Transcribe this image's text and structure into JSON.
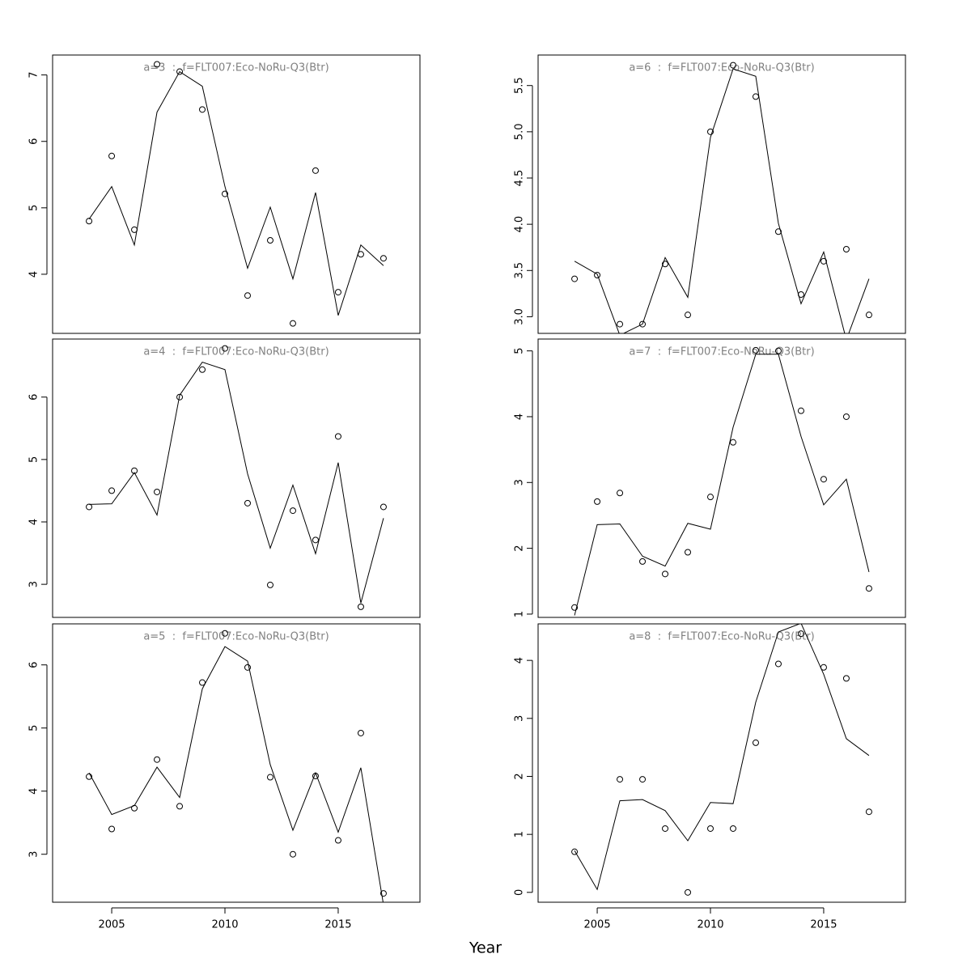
{
  "xlabel": "Year",
  "chart_data": [
    {
      "type": "line",
      "title": "a=3  :  f=FLT007:Eco-NoRu-Q3(Btr)",
      "x": [
        2004,
        2005,
        2006,
        2007,
        2008,
        2009,
        2010,
        2011,
        2012,
        2013,
        2014,
        2015,
        2016,
        2017
      ],
      "series": [
        {
          "marker": "circle",
          "color": "#000000",
          "values": [
            4.8,
            5.78,
            4.67,
            7.16,
            7.05,
            6.48,
            5.21,
            3.68,
            4.51,
            3.26,
            5.56,
            3.73,
            4.3,
            4.24
          ]
        },
        {
          "marker": "none",
          "color": "#000000",
          "values": [
            4.83,
            5.32,
            4.44,
            6.44,
            7.05,
            6.83,
            5.32,
            4.09,
            5.01,
            3.93,
            5.23,
            3.38,
            4.44,
            4.13
          ]
        }
      ],
      "xlim": [
        2002.39,
        2018.61
      ],
      "ylim": [
        3.11,
        7.3
      ],
      "yticks": [
        4,
        5,
        6,
        7
      ]
    },
    {
      "type": "line",
      "title": "a=6  :  f=FLT007:Eco-NoRu-Q3(Btr)",
      "x": [
        2004,
        2005,
        2006,
        2007,
        2008,
        2009,
        2010,
        2011,
        2012,
        2013,
        2014,
        2015,
        2016,
        2017
      ],
      "series": [
        {
          "marker": "circle",
          "color": "#000000",
          "values": [
            3.41,
            3.45,
            2.92,
            2.92,
            3.57,
            3.02,
            5.0,
            5.72,
            5.38,
            3.92,
            3.24,
            3.6,
            3.73,
            3.02
          ]
        },
        {
          "marker": "none",
          "color": "#000000",
          "values": [
            3.6,
            3.46,
            2.8,
            2.92,
            3.64,
            3.21,
            4.94,
            5.68,
            5.6,
            4.01,
            3.14,
            3.7,
            2.75,
            3.41
          ]
        }
      ],
      "xlim": [
        2002.39,
        2018.61
      ],
      "ylim": [
        2.82,
        5.83
      ],
      "yticks": [
        {
          "value": 3,
          "label": "3.0"
        },
        3.5,
        {
          "value": 4,
          "label": "4.0"
        },
        4.5,
        {
          "value": 5,
          "label": "5.0"
        },
        5.5
      ]
    },
    {
      "type": "line",
      "title": "a=4  :  f=FLT007:Eco-NoRu-Q3(Btr)",
      "x": [
        2004,
        2005,
        2006,
        2007,
        2008,
        2009,
        2010,
        2011,
        2012,
        2013,
        2014,
        2015,
        2016,
        2017
      ],
      "series": [
        {
          "marker": "circle",
          "color": "#000000",
          "values": [
            4.24,
            4.5,
            4.82,
            4.48,
            6.0,
            6.44,
            6.78,
            4.3,
            2.99,
            4.18,
            3.71,
            5.37,
            2.64,
            4.24
          ]
        },
        {
          "marker": "none",
          "color": "#000000",
          "values": [
            4.28,
            4.29,
            4.79,
            4.11,
            6.03,
            6.56,
            6.44,
            4.77,
            3.58,
            4.59,
            3.49,
            4.95,
            2.7,
            4.06
          ]
        }
      ],
      "xlim": [
        2002.39,
        2018.61
      ],
      "ylim": [
        2.47,
        6.93
      ],
      "yticks": [
        3,
        4,
        5,
        6
      ]
    },
    {
      "type": "line",
      "title": "a=7  :  f=FLT007:Eco-NoRu-Q3(Btr)",
      "x": [
        2004,
        2005,
        2006,
        2007,
        2008,
        2009,
        2010,
        2011,
        2012,
        2013,
        2014,
        2015,
        2016,
        2017
      ],
      "series": [
        {
          "marker": "circle",
          "color": "#000000",
          "values": [
            1.1,
            2.71,
            2.84,
            1.8,
            1.61,
            1.94,
            2.78,
            3.61,
            5.01,
            5.0,
            4.09,
            3.05,
            4.0,
            1.39
          ]
        },
        {
          "marker": "none",
          "color": "#000000",
          "values": [
            0.98,
            2.36,
            2.37,
            1.88,
            1.73,
            2.38,
            2.29,
            3.84,
            4.95,
            4.95,
            3.7,
            2.66,
            3.05,
            1.64
          ]
        }
      ],
      "xlim": [
        2002.39,
        2018.61
      ],
      "ylim": [
        0.95,
        5.18
      ],
      "yticks": [
        1,
        2,
        3,
        4,
        5
      ]
    },
    {
      "type": "line",
      "title": "a=5  :  f=FLT007:Eco-NoRu-Q3(Btr)",
      "x": [
        2004,
        2005,
        2006,
        2007,
        2008,
        2009,
        2010,
        2011,
        2012,
        2013,
        2014,
        2015,
        2016,
        2017
      ],
      "series": [
        {
          "marker": "circle",
          "color": "#000000",
          "values": [
            4.23,
            3.4,
            3.73,
            4.5,
            3.76,
            5.72,
            6.5,
            5.96,
            4.22,
            3.0,
            4.24,
            3.22,
            4.92,
            2.38
          ]
        },
        {
          "marker": "none",
          "color": "#000000",
          "values": [
            4.29,
            3.63,
            3.77,
            4.38,
            3.9,
            5.62,
            6.29,
            6.06,
            4.42,
            3.38,
            4.29,
            3.35,
            4.37,
            2.2
          ]
        }
      ],
      "xlim": [
        2002.39,
        2018.61
      ],
      "ylim": [
        2.24,
        6.65
      ],
      "yticks": [
        3,
        4,
        5,
        6
      ],
      "xticks": [
        2005,
        2010,
        2015
      ]
    },
    {
      "type": "line",
      "title": "a=8  :  f=FLT007:Eco-NoRu-Q3(Btr)",
      "x": [
        2004,
        2005,
        2006,
        2007,
        2008,
        2009,
        2010,
        2011,
        2012,
        2013,
        2014,
        2015,
        2016,
        2017
      ],
      "series": [
        {
          "marker": "circle",
          "color": "#000000",
          "values": [
            0.7,
            null,
            1.95,
            1.95,
            1.1,
            0,
            1.1,
            1.1,
            2.58,
            3.94,
            4.46,
            3.88,
            3.69,
            1.39
          ]
        },
        {
          "marker": "none",
          "color": "#000000",
          "values": [
            0.72,
            0.05,
            1.58,
            1.6,
            1.41,
            0.89,
            1.55,
            1.53,
            3.28,
            4.49,
            4.64,
            3.76,
            2.65,
            2.36
          ]
        }
      ],
      "xlim": [
        2002.39,
        2018.61
      ],
      "ylim": [
        -0.17,
        4.63
      ],
      "yticks": [
        0,
        1,
        2,
        3,
        4
      ],
      "xticks": [
        2005,
        2010,
        2015
      ]
    }
  ]
}
